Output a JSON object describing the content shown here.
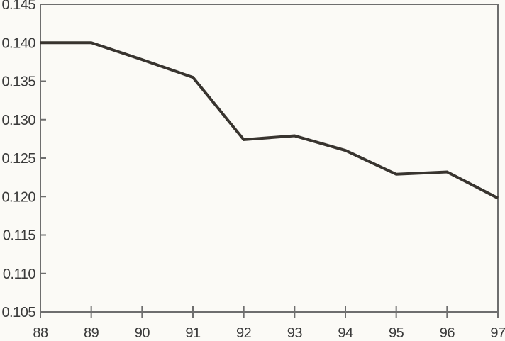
{
  "chart_data": {
    "type": "line",
    "title": "",
    "xlabel": "",
    "ylabel": "",
    "x": [
      88,
      89,
      90,
      91,
      92,
      93,
      94,
      95,
      96,
      97
    ],
    "series": [
      {
        "name": "series-1",
        "values": [
          0.14,
          0.14,
          0.1378,
          0.1355,
          0.1274,
          0.1279,
          0.126,
          0.1229,
          0.1232,
          0.1198
        ]
      }
    ],
    "xtick_labels": [
      "88",
      "89",
      "90",
      "91",
      "92",
      "93",
      "94",
      "95",
      "96",
      "97"
    ],
    "ytick_labels": [
      "0.105",
      "0.110",
      "0.115",
      "0.120",
      "0.125",
      "0.130",
      "0.135",
      "0.140",
      "0.145"
    ],
    "ylim": [
      0.105,
      0.145
    ],
    "ytick_step": 0.005,
    "grid": false,
    "legend": "none",
    "colors": {
      "line": "#38342f",
      "axis": "#6e6e6e",
      "text": "#3a3a3a",
      "background": "#fbfaf6"
    }
  }
}
